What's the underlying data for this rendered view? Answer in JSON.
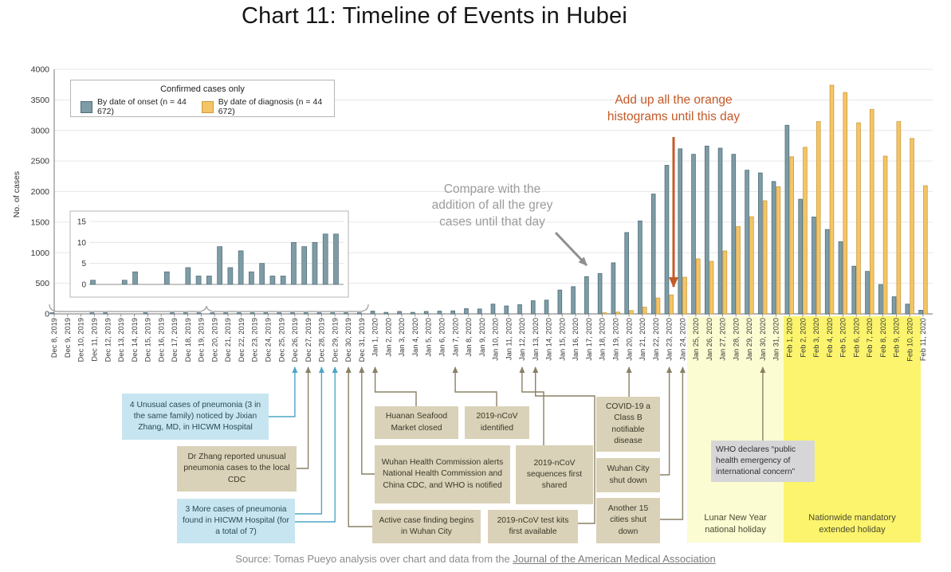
{
  "title": "Chart 11: Timeline of Events in Hubei",
  "legend": {
    "title": "Confirmed cases only",
    "onset_label": "By date of onset (n = 44 672)",
    "diagnosis_label": "By date of diagnosis (n = 44 672)"
  },
  "colors": {
    "onset_fill": "#7e9ca6",
    "onset_stroke": "#4e6d79",
    "diagnosis_fill": "#f3c566",
    "diagnosis_stroke": "#cf9a3d",
    "blue_connector": "#4fa5c6",
    "olive_connector": "#8a8066",
    "orange_annotation": "#c45a28",
    "grey_annotation": "#9b9b9b",
    "lunar_band": "#fcfcd2",
    "national_band": "#fbf46c"
  },
  "annotations": {
    "orange_note": "Add up all the orange\nhistograms until this day",
    "grey_note": "Compare with the\naddition of all the grey\ncases until that day"
  },
  "holidays": {
    "lunar": "Lunar New Year\nnational holiday",
    "national": "Nationwide mandatory\nextended holiday"
  },
  "source": {
    "prefix": "Source: Tomas Pueyo analysis over chart and data from the ",
    "link_text": "Journal of the American Medical Association"
  },
  "events": [
    {
      "id": "unusual",
      "date": "Dec 26, 2019",
      "style": "blue",
      "text": "4 Unusual cases of pneumonia (3 in the same family) noticed by Jixian Zhang, MD, in HICWM Hospital"
    },
    {
      "id": "reported",
      "date": "Dec 27, 2019",
      "style": "tan",
      "text": "Dr Zhang reported unusual pneumonia cases to the local CDC"
    },
    {
      "id": "threemore",
      "date": "Dec 28, 2019",
      "style": "blue",
      "text": "3 More cases of pneumonia found in HICWM Hospital (for a total of 7)"
    },
    {
      "id": "active",
      "date": "Dec 30, 2019",
      "style": "tan",
      "text": "Active case finding begins in Wuhan City"
    },
    {
      "id": "whc",
      "date": "Dec 31, 2019",
      "style": "tan",
      "text": "Wuhan Health Commission alerts National Health Commission and China CDC, and WHO is notified"
    },
    {
      "id": "huanan",
      "date": "Jan 1, 2020",
      "style": "tan",
      "text": "Huanan Seafood Market closed"
    },
    {
      "id": "identified",
      "date": "Jan 7, 2020",
      "style": "tan",
      "text": "2019-nCoV identified"
    },
    {
      "id": "sequences",
      "date": "Jan 12, 2020",
      "style": "tan",
      "text": "2019-nCoV sequences first shared"
    },
    {
      "id": "testkits",
      "date": "Jan 13, 2020",
      "style": "tan",
      "text": "2019-nCoV test kits first available"
    },
    {
      "id": "classb",
      "date": "Jan 20, 2020",
      "style": "tan",
      "text": "COVID-19 a Class B notifiable disease"
    },
    {
      "id": "wuhanshut",
      "date": "Jan 23, 2020",
      "style": "tan",
      "text": "Wuhan City shut down"
    },
    {
      "id": "another15",
      "date": "Jan 24, 2020",
      "style": "tan",
      "text": "Another 15 cities shut down"
    },
    {
      "id": "who",
      "date": "Jan 30, 2020",
      "style": "grey",
      "text": "WHO declares “public health emergency of international concern”"
    }
  ],
  "chart_data": {
    "type": "bar",
    "title": "Chart 11: Timeline of Events in Hubei",
    "xlabel": "",
    "ylabel": "No. of cases",
    "ylim": [
      0,
      4000
    ],
    "yticks": [
      0,
      500,
      1000,
      1500,
      2000,
      2500,
      3000,
      3500,
      4000
    ],
    "grid": true,
    "legend_position": "top-left",
    "categories": [
      "Dec 8, 2019",
      "Dec 9, 2019",
      "Dec 10, 2019",
      "Dec 11, 2019",
      "Dec 12, 2019",
      "Dec 13, 2019",
      "Dec 14, 2019",
      "Dec 15, 2019",
      "Dec 16, 2019",
      "Dec 17, 2019",
      "Dec 18, 2019",
      "Dec 19, 2019",
      "Dec 20, 2019",
      "Dec 21, 2019",
      "Dec 22, 2019",
      "Dec 23, 2019",
      "Dec 24, 2019",
      "Dec 25, 2019",
      "Dec 26, 2019",
      "Dec 27, 2019",
      "Dec 28, 2019",
      "Dec 29, 2019",
      "Dec 30, 2019",
      "Dec 31, 2019",
      "Jan 1, 2020",
      "Jan 2, 2020",
      "Jan 3, 2020",
      "Jan 4, 2020",
      "Jan 5, 2020",
      "Jan 6, 2020",
      "Jan 7, 2020",
      "Jan 8, 2020",
      "Jan 9, 2020",
      "Jan 10, 2020",
      "Jan 11, 2020",
      "Jan 12, 2020",
      "Jan 13, 2020",
      "Jan 14, 2020",
      "Jan 15, 2020",
      "Jan 16, 2020",
      "Jan 17, 2020",
      "Jan 18, 2020",
      "Jan 19, 2020",
      "Jan 20, 2020",
      "Jan 21, 2020",
      "Jan 22, 2020",
      "Jan 23, 2020",
      "Jan 24, 2020",
      "Jan 25, 2020",
      "Jan 26, 2020",
      "Jan 27, 2020",
      "Jan 28, 2020",
      "Jan 29, 2020",
      "Jan 30, 2020",
      "Jan 31, 2020",
      "Feb 1, 2020",
      "Feb 2, 2020",
      "Feb 3, 2020",
      "Feb 4, 2020",
      "Feb 5, 2020",
      "Feb 6, 2020",
      "Feb 7, 2020",
      "Feb 8, 2020",
      "Feb 9, 2020",
      "Feb 10, 2020",
      "Feb 11, 2020"
    ],
    "series": [
      {
        "name": "By date of onset (n = 44 672)",
        "color": "#7e9ca6",
        "values": [
          1,
          0,
          0,
          1,
          3,
          0,
          0,
          3,
          0,
          4,
          2,
          2,
          9,
          4,
          8,
          3,
          5,
          2,
          2,
          10,
          9,
          10,
          12,
          12,
          45,
          25,
          40,
          25,
          40,
          45,
          50,
          85,
          80,
          160,
          130,
          150,
          215,
          225,
          390,
          445,
          610,
          660,
          835,
          1330,
          1520,
          1960,
          2430,
          2700,
          2610,
          2745,
          2710,
          2610,
          2350,
          2305,
          2165,
          3085,
          1875,
          1585,
          1380,
          1180,
          780,
          695,
          480,
          280,
          160,
          60
        ]
      },
      {
        "name": "By date of diagnosis (n = 44 672)",
        "color": "#f3c566",
        "values": [
          0,
          0,
          0,
          0,
          0,
          0,
          0,
          0,
          0,
          0,
          0,
          0,
          0,
          0,
          0,
          0,
          0,
          0,
          0,
          0,
          0,
          0,
          0,
          0,
          0,
          0,
          0,
          0,
          0,
          0,
          0,
          0,
          0,
          0,
          0,
          0,
          0,
          0,
          0,
          0,
          0,
          15,
          30,
          55,
          110,
          260,
          310,
          600,
          900,
          860,
          1030,
          1430,
          1590,
          1850,
          2080,
          2570,
          2725,
          3145,
          3740,
          3620,
          3125,
          3345,
          2580,
          3145,
          2870,
          2095
        ]
      }
    ],
    "inset": {
      "description": "Magnified view of Dec 8-31, 2019 onset cases",
      "yticks": [
        0,
        5,
        10,
        15
      ],
      "values": [
        1,
        0,
        0,
        1,
        3,
        0,
        0,
        3,
        0,
        4,
        2,
        2,
        9,
        4,
        8,
        3,
        5,
        2,
        2,
        10,
        9,
        10,
        12,
        12
      ]
    }
  }
}
